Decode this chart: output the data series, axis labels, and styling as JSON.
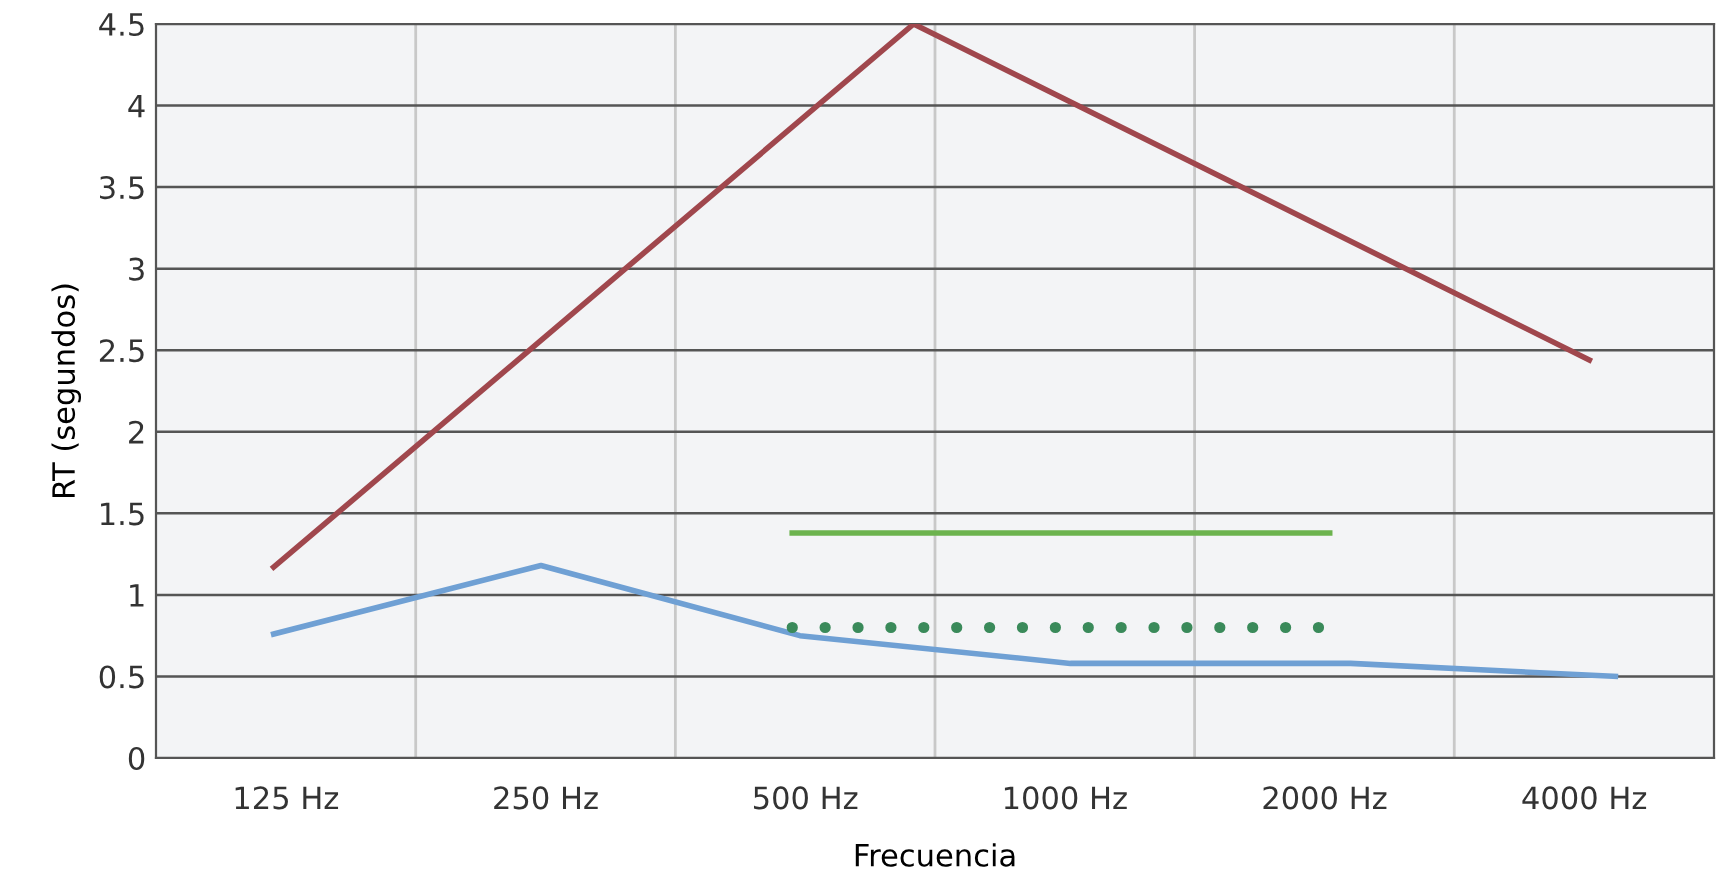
{
  "chart_data": {
    "type": "line",
    "xlabel": "Frecuencia",
    "ylabel": "RT (segundos)",
    "log": "x",
    "xlim": [
      88.39,
      5657
    ],
    "ylim": [
      0,
      4.5
    ],
    "xticks": [
      {
        "value": 125,
        "label": "125 Hz"
      },
      {
        "value": 176.8,
        "label": null
      },
      {
        "value": 250,
        "label": "250 Hz"
      },
      {
        "value": 353.6,
        "label": null
      },
      {
        "value": 500,
        "label": "500 Hz"
      },
      {
        "value": 707.1,
        "label": null
      },
      {
        "value": 1000,
        "label": "1000 Hz"
      },
      {
        "value": 1414,
        "label": null
      },
      {
        "value": 2000,
        "label": "2000 Hz"
      },
      {
        "value": 2828,
        "label": null
      },
      {
        "value": 4000,
        "label": "4000 Hz"
      }
    ],
    "yticks": [
      0,
      0.5,
      1,
      1.5,
      2,
      2.5,
      3,
      3.5,
      4,
      4.5
    ],
    "grid": true,
    "legend": false,
    "series": [
      {
        "color": "#a0474d",
        "x": [
          121,
          668,
          4056
        ],
        "values": [
          1.17,
          4.5,
          2.44
        ]
      },
      {
        "color": "#6fa0d4",
        "x": [
          121,
          247,
          493,
          1015,
          2144,
          4348
        ],
        "values": [
          0.76,
          1.18,
          0.75,
          0.58,
          0.58,
          0.5
        ]
      },
      {
        "color": "#6cb34e",
        "x": [
          483,
          2028
        ],
        "values": [
          1.38,
          1.38
        ]
      },
      {
        "color": "#3a8a5a",
        "x": [
          483,
          2028
        ],
        "values": [
          0.8,
          0.8
        ],
        "line_style": "dotted"
      }
    ]
  }
}
